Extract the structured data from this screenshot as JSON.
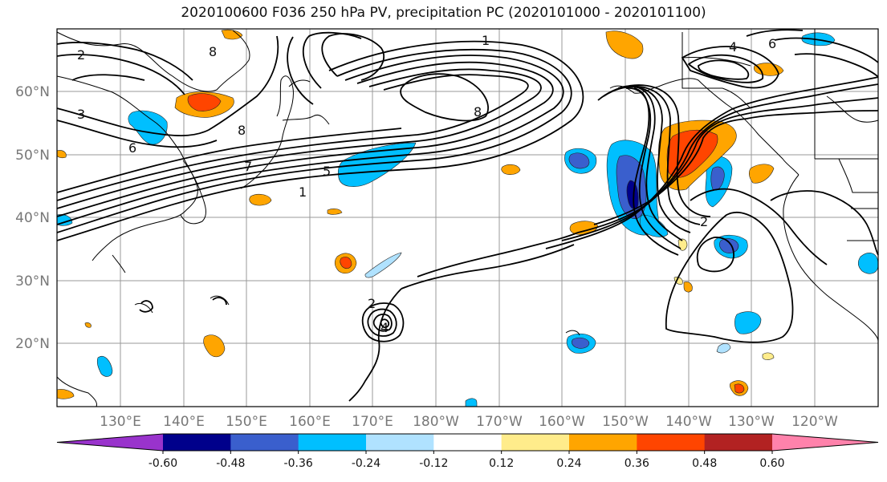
{
  "title": "2020100600 F036 250 hPa PV, precipitation PC (2020101000 - 2020101100)",
  "lat_labels": [
    "60°N",
    "50°N",
    "40°N",
    "30°N",
    "20°N"
  ],
  "lon_labels": [
    "130°E",
    "140°E",
    "150°E",
    "160°E",
    "170°E",
    "180°W",
    "170°W",
    "160°W",
    "150°W",
    "140°W",
    "130°W",
    "120°W"
  ],
  "colorbar": {
    "labels": [
      "-0.60",
      "-0.48",
      "-0.36",
      "-0.24",
      "-0.12",
      "0.12",
      "0.24",
      "0.36",
      "0.48",
      "0.60"
    ],
    "colors": [
      "#9933cc",
      "#00008b",
      "#3a5fcd",
      "#00bfff",
      "#b0e2ff",
      "#ffffff",
      "#ffec8b",
      "#ffa500",
      "#ff4500",
      "#b22222",
      "#ff82ab"
    ]
  },
  "contour_labels": [
    "1",
    "2",
    "3",
    "4",
    "5",
    "6",
    "7",
    "8"
  ]
}
